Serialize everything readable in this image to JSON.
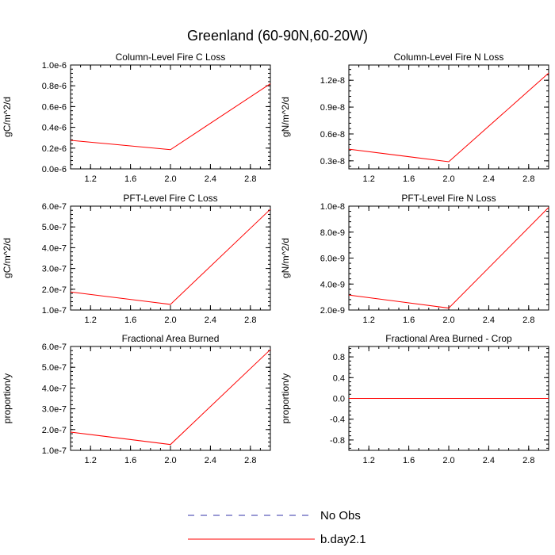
{
  "figure": {
    "title": "Greenland (60-90N,60-20W)",
    "legend": [
      {
        "label": "No Obs",
        "color": "#3333aa",
        "dash": "dashed"
      },
      {
        "label": "b.day2.1",
        "color": "#ff0000",
        "dash": "solid"
      }
    ]
  },
  "chart_data": [
    {
      "type": "line",
      "title": "Column-Level Fire C Loss",
      "xlabel": "",
      "ylabel": "gC/m^2/d",
      "xlim": [
        1.0,
        3.0
      ],
      "ylim": [
        0.0,
        1e-06
      ],
      "xticks": [
        1.2,
        1.6,
        2.0,
        2.4,
        2.8
      ],
      "xtick_labels": [
        "1.2",
        "1.6",
        "2.0",
        "2.4",
        "2.8"
      ],
      "yticks": [
        0.0,
        2e-07,
        4e-07,
        6e-07,
        8e-07,
        1e-06
      ],
      "ytick_labels": [
        "0.0e-6",
        "0.2e-6",
        "0.4e-6",
        "0.6e-6",
        "0.8e-6",
        "1.0e-6"
      ],
      "series": [
        {
          "name": "b.day2.1",
          "color": "#ff0000",
          "x": [
            1.0,
            2.0,
            3.0
          ],
          "y": [
            2.75e-07,
            1.85e-07,
            8.2e-07
          ]
        }
      ]
    },
    {
      "type": "line",
      "title": "Column-Level Fire N Loss",
      "xlabel": "",
      "ylabel": "gN/m^2/d",
      "xlim": [
        1.0,
        3.0
      ],
      "ylim": [
        2.1e-09,
        1.37e-08
      ],
      "xticks": [
        1.2,
        1.6,
        2.0,
        2.4,
        2.8
      ],
      "xtick_labels": [
        "1.2",
        "1.6",
        "2.0",
        "2.4",
        "2.8"
      ],
      "yticks": [
        3e-09,
        6e-09,
        9e-09,
        1.2e-08
      ],
      "ytick_labels": [
        "0.3e-8",
        "0.6e-8",
        "0.9e-8",
        "1.2e-8"
      ],
      "series": [
        {
          "name": "b.day2.1",
          "color": "#ff0000",
          "x": [
            1.0,
            2.0,
            3.0
          ],
          "y": [
            4.3e-09,
            2.9e-09,
            1.28e-08
          ]
        }
      ]
    },
    {
      "type": "line",
      "title": "PFT-Level Fire C Loss",
      "xlabel": "",
      "ylabel": "gC/m^2/d",
      "xlim": [
        1.0,
        3.0
      ],
      "ylim": [
        1e-07,
        6e-07
      ],
      "xticks": [
        1.2,
        1.6,
        2.0,
        2.4,
        2.8
      ],
      "xtick_labels": [
        "1.2",
        "1.6",
        "2.0",
        "2.4",
        "2.8"
      ],
      "yticks": [
        1e-07,
        2e-07,
        3e-07,
        4e-07,
        5e-07,
        6e-07
      ],
      "ytick_labels": [
        "1.0e-7",
        "2.0e-7",
        "3.0e-7",
        "4.0e-7",
        "5.0e-7",
        "6.0e-7"
      ],
      "series": [
        {
          "name": "b.day2.1",
          "color": "#ff0000",
          "x": [
            1.0,
            2.0,
            3.0
          ],
          "y": [
            1.87e-07,
            1.27e-07,
            5.85e-07
          ]
        }
      ]
    },
    {
      "type": "line",
      "title": "PFT-Level Fire N Loss",
      "xlabel": "",
      "ylabel": "gN/m^2/d",
      "xlim": [
        1.0,
        3.0
      ],
      "ylim": [
        2e-09,
        1e-08
      ],
      "xticks": [
        1.2,
        1.6,
        2.0,
        2.4,
        2.8
      ],
      "xtick_labels": [
        "1.2",
        "1.6",
        "2.0",
        "2.4",
        "2.8"
      ],
      "yticks": [
        2e-09,
        4e-09,
        6e-09,
        8e-09,
        1e-08
      ],
      "ytick_labels": [
        "2.0e-9",
        "4.0e-9",
        "6.0e-9",
        "8.0e-9",
        "1.0e-8"
      ],
      "series": [
        {
          "name": "b.day2.1",
          "color": "#ff0000",
          "x": [
            1.0,
            2.0,
            3.0
          ],
          "y": [
            3.15e-09,
            2.15e-09,
            9.9e-09
          ]
        }
      ]
    },
    {
      "type": "line",
      "title": "Fractional Area Burned",
      "xlabel": "",
      "ylabel": "proportion/y",
      "xlim": [
        1.0,
        3.0
      ],
      "ylim": [
        1e-07,
        6e-07
      ],
      "xticks": [
        1.2,
        1.6,
        2.0,
        2.4,
        2.8
      ],
      "xtick_labels": [
        "1.2",
        "1.6",
        "2.0",
        "2.4",
        "2.8"
      ],
      "yticks": [
        1e-07,
        2e-07,
        3e-07,
        4e-07,
        5e-07,
        6e-07
      ],
      "ytick_labels": [
        "1.0e-7",
        "2.0e-7",
        "3.0e-7",
        "4.0e-7",
        "5.0e-7",
        "6.0e-7"
      ],
      "series": [
        {
          "name": "b.day2.1",
          "color": "#ff0000",
          "x": [
            1.0,
            2.0,
            3.0
          ],
          "y": [
            1.88e-07,
            1.28e-07,
            5.85e-07
          ]
        }
      ]
    },
    {
      "type": "line",
      "title": "Fractional Area Burned - Crop",
      "xlabel": "",
      "ylabel": "proportion/y",
      "xlim": [
        1.0,
        3.0
      ],
      "ylim": [
        -1.0,
        1.0
      ],
      "xticks": [
        1.2,
        1.6,
        2.0,
        2.4,
        2.8
      ],
      "xtick_labels": [
        "1.2",
        "1.6",
        "2.0",
        "2.4",
        "2.8"
      ],
      "yticks": [
        -0.8,
        -0.4,
        0.0,
        0.4,
        0.8
      ],
      "ytick_labels": [
        "-0.8",
        "-0.4",
        "0.0",
        "0.4",
        "0.8"
      ],
      "series": [
        {
          "name": "b.day2.1",
          "color": "#ff0000",
          "x": [
            1.0,
            2.0,
            3.0
          ],
          "y": [
            0.0,
            0.0,
            0.0
          ]
        }
      ]
    }
  ]
}
